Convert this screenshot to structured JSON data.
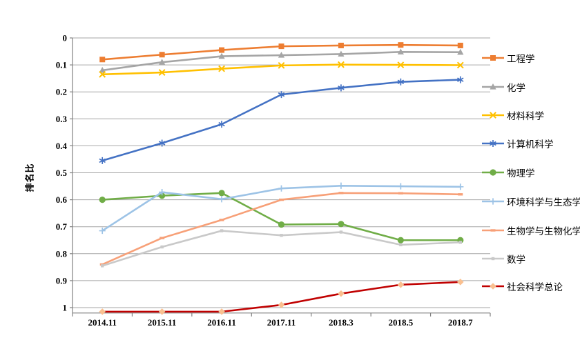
{
  "chart_data": {
    "type": "line",
    "title": "",
    "xlabel": "",
    "ylabel": "排名比",
    "y_axis": {
      "min": 0,
      "max": 1.02,
      "inverted": true,
      "tick_step": 0.1,
      "grid": true
    },
    "y_tick_labels": [
      "0",
      "0.1",
      "0.2",
      "0.3",
      "0.4",
      "0.5",
      "0.6",
      "0.7",
      "0.8",
      "0.9",
      "1"
    ],
    "categories": [
      "2014.11",
      "2015.11",
      "2016.11",
      "2017.11",
      "2018.3",
      "2018.5",
      "2018.7"
    ],
    "legend_position": "right",
    "colors": {
      "gridline": "#A6A6A6",
      "axis": "#808080",
      "text": "#000000",
      "background": "#FFFFFF"
    },
    "series": [
      {
        "name": "工程学",
        "key": "engineering",
        "color": "#ED7D31",
        "marker": "square",
        "values": [
          0.08,
          0.062,
          0.045,
          0.031,
          0.028,
          0.026,
          0.028
        ]
      },
      {
        "name": "化学",
        "key": "chemistry",
        "color": "#A5A5A5",
        "marker": "triangle",
        "values": [
          0.12,
          0.09,
          0.068,
          0.064,
          0.06,
          0.052,
          0.053
        ]
      },
      {
        "name": "材料科学",
        "key": "materials-science",
        "color": "#FFC000",
        "marker": "x",
        "values": [
          0.135,
          0.128,
          0.114,
          0.102,
          0.099,
          0.1,
          0.101
        ]
      },
      {
        "name": "计算机科学",
        "key": "computer-science",
        "color": "#4472C4",
        "marker": "asterisk",
        "values": [
          0.455,
          0.39,
          0.32,
          0.21,
          0.185,
          0.163,
          0.155
        ]
      },
      {
        "name": "物理学",
        "key": "physics",
        "color": "#70AD47",
        "marker": "circle",
        "values": [
          0.6,
          0.585,
          0.575,
          0.692,
          0.69,
          0.75,
          0.75
        ]
      },
      {
        "name": "环境科学与生态学",
        "key": "environmental-science-ecology",
        "color": "#9DC3E6",
        "marker": "plus",
        "values": [
          0.715,
          0.572,
          0.598,
          0.558,
          0.548,
          0.55,
          0.552
        ]
      },
      {
        "name": "生物学与生物化学",
        "key": "biology-biochemistry",
        "color": "#F7A078",
        "marker": "dash",
        "values": [
          0.84,
          0.742,
          0.675,
          0.6,
          0.575,
          0.576,
          0.58
        ]
      },
      {
        "name": "数学",
        "key": "mathematics",
        "color": "#C9C9C9",
        "marker": "small-square",
        "values": [
          0.845,
          0.775,
          0.715,
          0.732,
          0.72,
          0.767,
          0.758
        ]
      },
      {
        "name": "社会科学总论",
        "key": "social-sciences-general",
        "color": "#C00000",
        "marker": "diamond",
        "marker_fill": "#FAC090",
        "values": [
          1.015,
          1.015,
          1.015,
          0.99,
          0.948,
          0.915,
          0.905
        ]
      }
    ]
  }
}
